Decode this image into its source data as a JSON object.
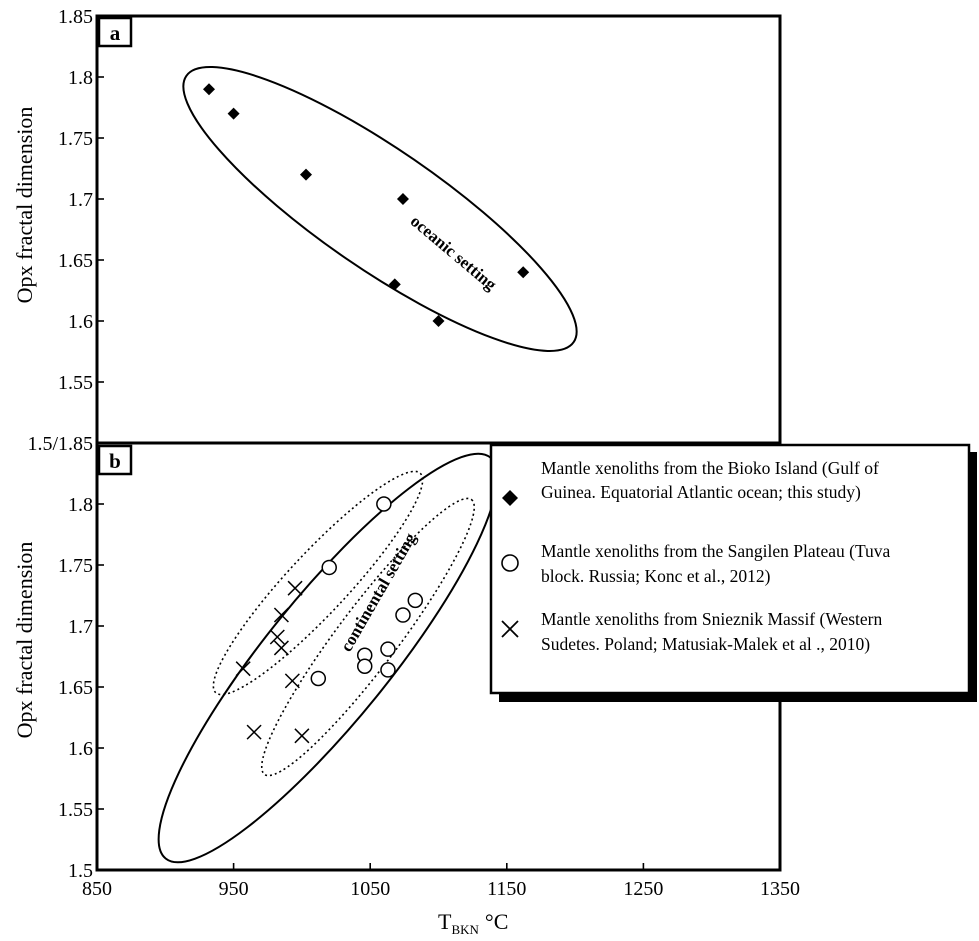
{
  "chart_data": [
    {
      "panel": "a",
      "type": "scatter",
      "ylabel": "Opx fractal dimension",
      "xlim": [
        850,
        1350
      ],
      "ylim": [
        1.5,
        1.85
      ],
      "y_ticks": [
        "1.85",
        "1.8",
        "1.75",
        "1.7",
        "1.65",
        "1.6",
        "1.55",
        "1.5/1.85"
      ],
      "y_tick_values": [
        1.85,
        1.8,
        1.75,
        1.7,
        1.65,
        1.6,
        1.55,
        1.5
      ],
      "region_label": "oceanic setting",
      "series": [
        {
          "marker": "diamond",
          "points": [
            [
              932,
              1.79
            ],
            [
              950,
              1.77
            ],
            [
              1003,
              1.72
            ],
            [
              1074,
              1.7
            ],
            [
              1068,
              1.63
            ],
            [
              1100,
              1.6
            ],
            [
              1162,
              1.64
            ]
          ]
        }
      ]
    },
    {
      "panel": "b",
      "type": "scatter",
      "xlabel_main": "T",
      "xlabel_sub": "BKN",
      "xlabel_unit": "°C",
      "ylabel": "Opx fractal dimension",
      "xlim": [
        850,
        1350
      ],
      "ylim": [
        1.5,
        1.85
      ],
      "x_ticks": [
        "850",
        "950",
        "1050",
        "1150",
        "1250",
        "1350"
      ],
      "x_tick_values": [
        850,
        950,
        1050,
        1150,
        1250,
        1350
      ],
      "y_ticks": [
        "1.8",
        "1.75",
        "1.7",
        "1.65",
        "1.6",
        "1.55",
        "1.5"
      ],
      "y_tick_values": [
        1.8,
        1.75,
        1.7,
        1.65,
        1.6,
        1.55,
        1.5
      ],
      "region_label": "continental setting",
      "series": [
        {
          "marker": "circle",
          "points": [
            [
              1060,
              1.8
            ],
            [
              1020,
              1.748
            ],
            [
              1074,
              1.709
            ],
            [
              1083,
              1.721
            ],
            [
              1063,
              1.681
            ],
            [
              1046,
              1.676
            ],
            [
              1046,
              1.667
            ],
            [
              1012,
              1.657
            ],
            [
              1063,
              1.664
            ]
          ]
        },
        {
          "marker": "cross",
          "points": [
            [
              995,
              1.731
            ],
            [
              985,
              1.709
            ],
            [
              982,
              1.691
            ],
            [
              985,
              1.682
            ],
            [
              957,
              1.665
            ],
            [
              993,
              1.655
            ],
            [
              965,
              1.613
            ],
            [
              1000,
              1.61
            ]
          ]
        }
      ],
      "legend": [
        {
          "marker": "diamond",
          "line1": "Mantle xenoliths from the Bioko Island (Gulf of",
          "line2": "Guinea. Equatorial Atlantic ocean; this study)"
        },
        {
          "marker": "circle",
          "line1": "Mantle xenoliths from the Sangilen Plateau (Tuva",
          "line2": "block. Russia;  Konc et al., 2012)"
        },
        {
          "marker": "cross",
          "line1": "Mantle xenoliths from Snieznik Massif  (Western",
          "line2": "Sudetes. Poland; Matusiak-Malek et al ., 2010)"
        }
      ],
      "legend_placement": "upper-right, overlapping panel edge"
    }
  ]
}
